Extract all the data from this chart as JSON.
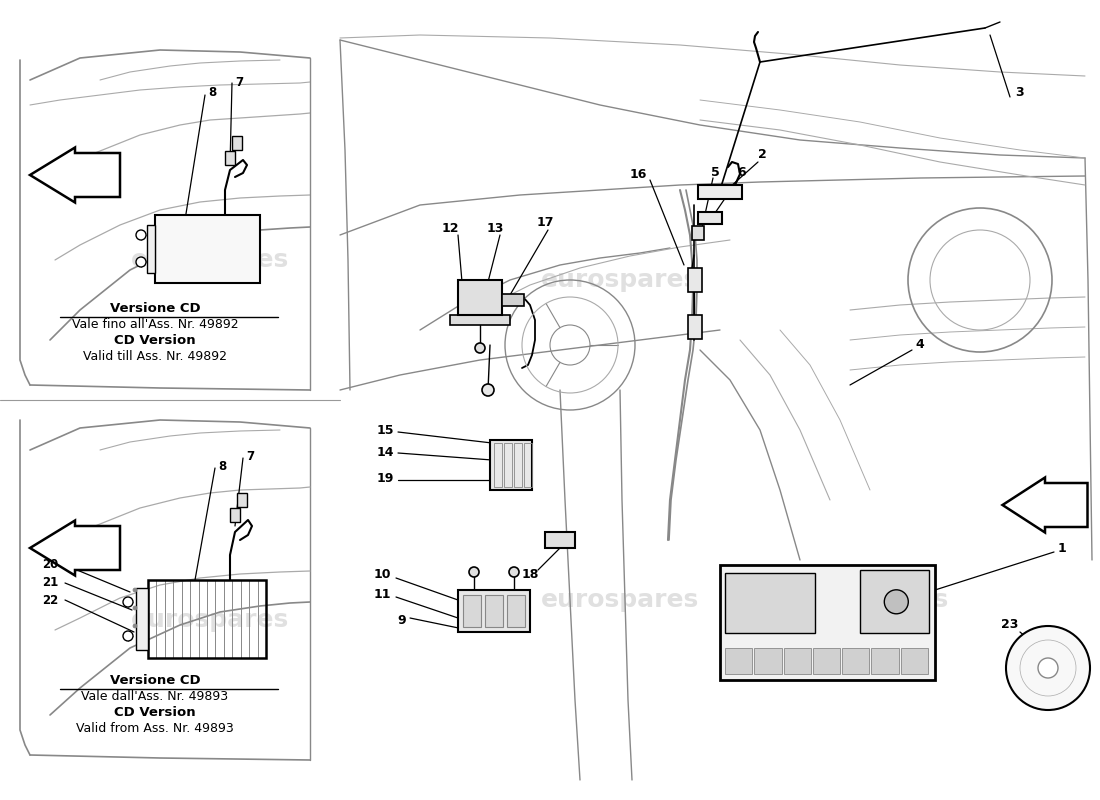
{
  "background_color": "#ffffff",
  "line_color": "#000000",
  "gray_color": "#888888",
  "light_gray": "#aaaaaa",
  "figsize": [
    11.0,
    8.0
  ],
  "dpi": 100,
  "labels": {
    "top_left_line1": "Versione CD",
    "top_left_line2": "Vale fino all'Ass. Nr. 49892",
    "top_left_line3": "CD Version",
    "top_left_line4": "Valid till Ass. Nr. 49892",
    "bot_left_line1": "Versione CD",
    "bot_left_line2": "Vale dall'Ass. Nr. 49893",
    "bot_left_line3": "CD Version",
    "bot_left_line4": "Valid from Ass. Nr. 49893"
  }
}
